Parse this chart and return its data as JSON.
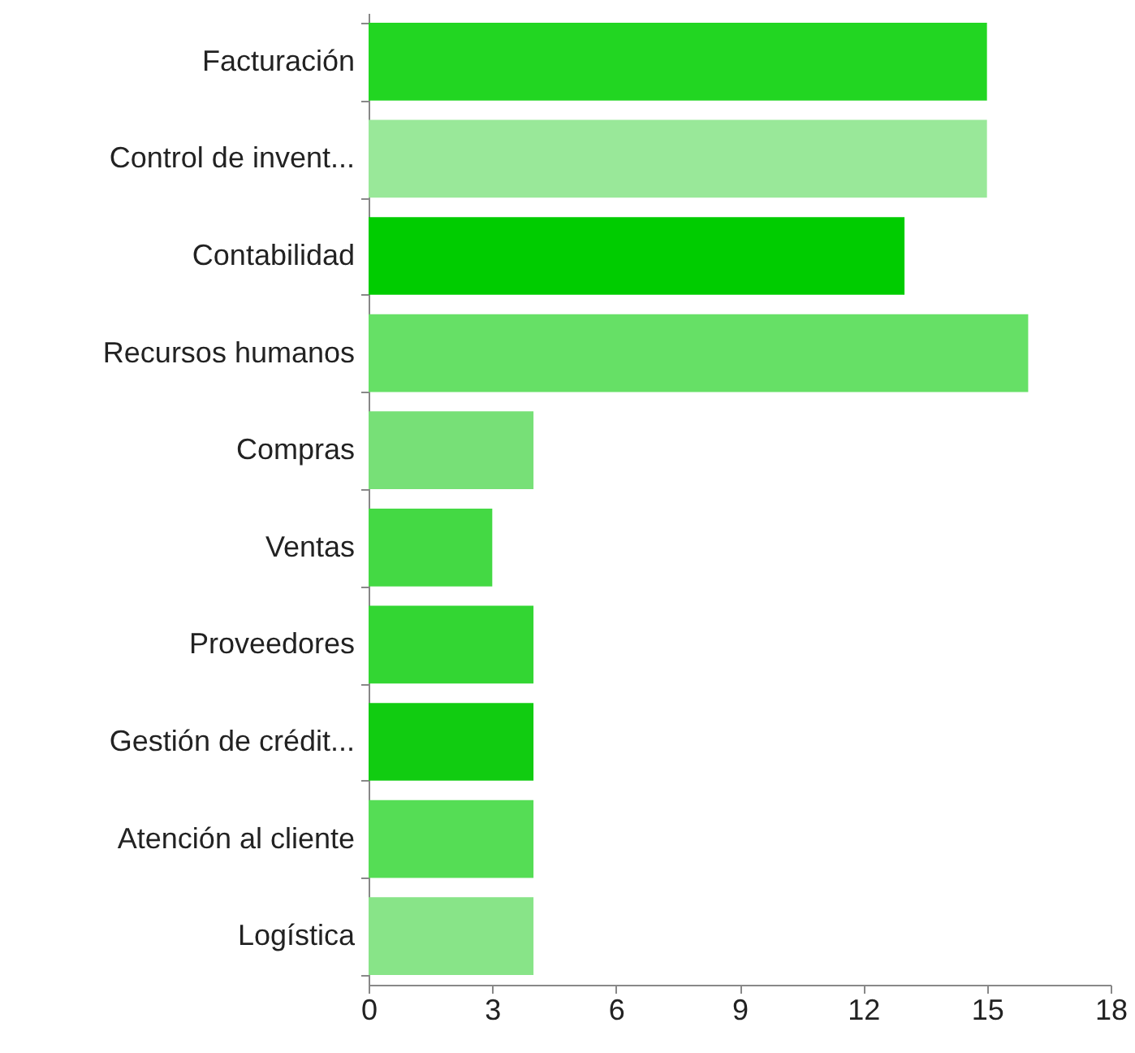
{
  "chart_data": {
    "type": "bar",
    "orientation": "horizontal",
    "categories": [
      "Facturación",
      "Control de invent...",
      "Contabilidad",
      "Recursos humanos",
      "Compras",
      "Ventas",
      "Proveedores",
      "Gestión de crédit...",
      "Atención al cliente",
      "Logística"
    ],
    "values": [
      15,
      15,
      13,
      16,
      4,
      3,
      4,
      4,
      4,
      4
    ],
    "colors": [
      "#22d622",
      "#99e899",
      "#00cc00",
      "#66e066",
      "#77e077",
      "#44d944",
      "#33d633",
      "#11cc11",
      "#55dd55",
      "#88e488"
    ],
    "xlim": [
      0,
      18
    ],
    "xticks": [
      0,
      3,
      6,
      9,
      12,
      15,
      18
    ]
  }
}
